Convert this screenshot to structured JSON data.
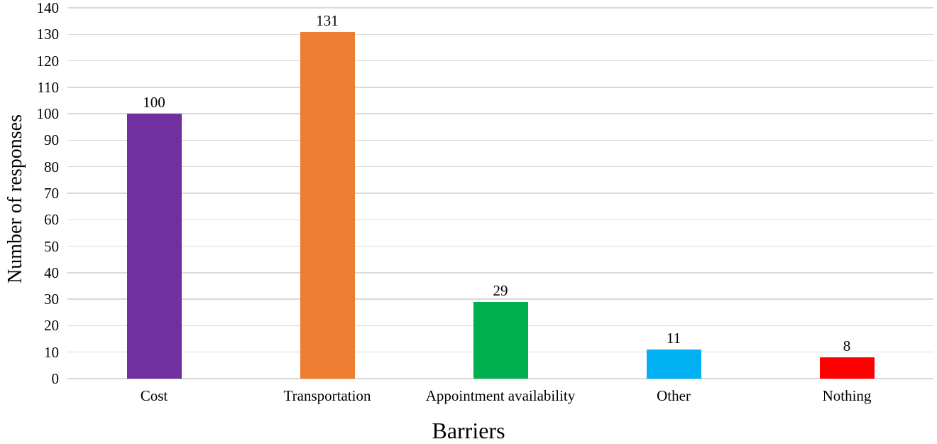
{
  "chart_data": {
    "type": "bar",
    "title": "",
    "xlabel": "Barriers",
    "ylabel": "Number of responses",
    "categories": [
      "Cost",
      "Transportation",
      "Appointment availability",
      "Other",
      "Nothing"
    ],
    "values": [
      100,
      131,
      29,
      11,
      8
    ],
    "bar_colors": [
      "#7030A0",
      "#ED7D31",
      "#00B050",
      "#00B0F0",
      "#FF0000"
    ],
    "value_labels": [
      "100",
      "131",
      "29",
      "11",
      "8"
    ],
    "ylim": [
      0,
      140
    ],
    "ytick_step": 10,
    "yticks": [
      0,
      10,
      20,
      30,
      40,
      50,
      60,
      70,
      80,
      90,
      100,
      110,
      120,
      130,
      140
    ],
    "grid": "horizontal",
    "gridline_color": "#D9D9D9",
    "background_color": "#FFFFFF",
    "text_color": "#000000",
    "legend": "none"
  }
}
